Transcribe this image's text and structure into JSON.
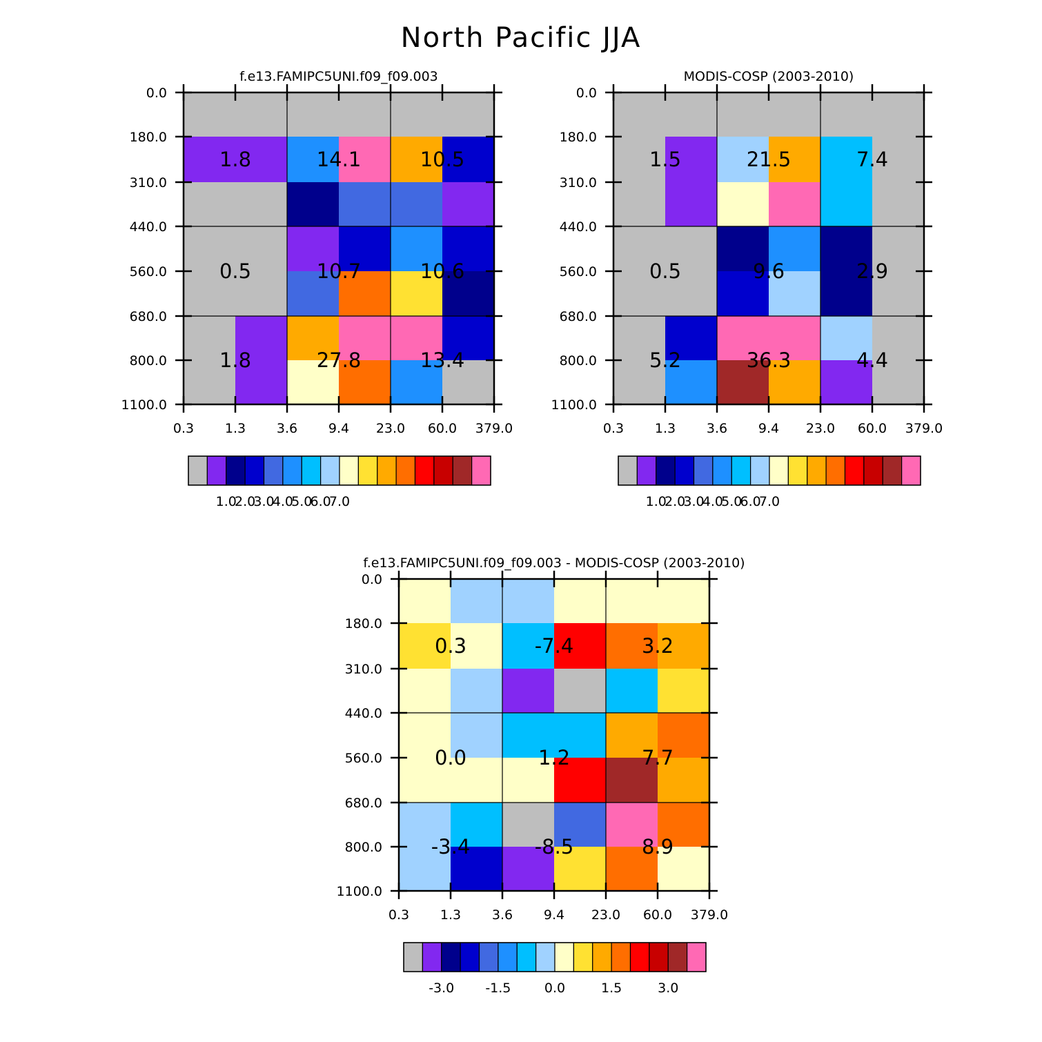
{
  "title": "North Pacific JJA",
  "palette": [
    "#bebebe",
    "#8228f0",
    "#00008c",
    "#0000cd",
    "#4169e1",
    "#1e90ff",
    "#00bfff",
    "#a0d2ff",
    "#ffffc8",
    "#ffe132",
    "#ffaa00",
    "#ff6e00",
    "#ff0000",
    "#c80000",
    "#a02828",
    "#ff69b4"
  ],
  "chart_data": [
    {
      "type": "heatmap",
      "id": "model",
      "title": "f.e13.FAMIPC5UNI.f09_f09.003",
      "x_ticks": [
        "0.3",
        "1.3",
        "3.6",
        "9.4",
        "23.0",
        "60.0",
        "379.0"
      ],
      "y_ticks": [
        "0.0",
        "180.0",
        "310.0",
        "440.0",
        "560.0",
        "680.0",
        "800.0",
        "1100.0"
      ],
      "cells": [
        [
          0,
          0,
          0,
          0,
          0,
          0
        ],
        [
          1,
          1,
          5,
          15,
          10,
          3
        ],
        [
          0,
          0,
          2,
          4,
          4,
          1
        ],
        [
          0,
          0,
          1,
          3,
          5,
          3
        ],
        [
          0,
          0,
          4,
          11,
          9,
          2
        ],
        [
          0,
          1,
          10,
          15,
          15,
          3
        ],
        [
          0,
          1,
          8,
          11,
          5,
          0
        ]
      ],
      "box_labels": [
        [
          "1.8",
          "14.1",
          "10.5"
        ],
        [
          "0.5",
          "10.7",
          "10.6"
        ],
        [
          "1.8",
          "27.8",
          "13.4"
        ]
      ],
      "colorbar": {
        "labels": [
          "1.0",
          "2.0",
          "3.0",
          "4.0",
          "5.0",
          "6.0",
          "7.0"
        ]
      }
    },
    {
      "type": "heatmap",
      "id": "obs",
      "title": "MODIS-COSP (2003-2010)",
      "x_ticks": [
        "0.3",
        "1.3",
        "3.6",
        "9.4",
        "23.0",
        "60.0",
        "379.0"
      ],
      "y_ticks": [
        "0.0",
        "180.0",
        "310.0",
        "440.0",
        "560.0",
        "680.0",
        "800.0",
        "1100.0"
      ],
      "cells": [
        [
          0,
          0,
          0,
          0,
          0,
          0
        ],
        [
          0,
          1,
          7,
          10,
          6,
          0
        ],
        [
          0,
          1,
          8,
          15,
          6,
          0
        ],
        [
          0,
          0,
          2,
          5,
          2,
          0
        ],
        [
          0,
          0,
          3,
          7,
          2,
          0
        ],
        [
          0,
          3,
          15,
          15,
          7,
          0
        ],
        [
          0,
          5,
          14,
          10,
          1,
          0
        ]
      ],
      "box_labels": [
        [
          "1.5",
          "21.5",
          "7.4"
        ],
        [
          "0.5",
          "9.6",
          "2.9"
        ],
        [
          "5.2",
          "36.3",
          "4.4"
        ]
      ],
      "colorbar": {
        "labels": [
          "1.0",
          "2.0",
          "3.0",
          "4.0",
          "5.0",
          "6.0",
          "7.0"
        ]
      }
    },
    {
      "type": "heatmap",
      "id": "diff",
      "title": "f.e13.FAMIPC5UNI.f09_f09.003 - MODIS-COSP (2003-2010)",
      "x_ticks": [
        "0.3",
        "1.3",
        "3.6",
        "9.4",
        "23.0",
        "60.0",
        "379.0"
      ],
      "y_ticks": [
        "0.0",
        "180.0",
        "310.0",
        "440.0",
        "560.0",
        "680.0",
        "800.0",
        "1100.0"
      ],
      "cells": [
        [
          8,
          7,
          7,
          8,
          8,
          8
        ],
        [
          9,
          8,
          6,
          12,
          11,
          10
        ],
        [
          8,
          7,
          1,
          0,
          6,
          9
        ],
        [
          8,
          7,
          6,
          6,
          10,
          11
        ],
        [
          8,
          8,
          8,
          12,
          14,
          10
        ],
        [
          7,
          6,
          0,
          4,
          15,
          11
        ],
        [
          7,
          3,
          1,
          9,
          11,
          8
        ]
      ],
      "box_labels": [
        [
          "0.3",
          "-7.4",
          "3.2"
        ],
        [
          "0.0",
          "1.2",
          "7.7"
        ],
        [
          "-3.4",
          "-8.5",
          "8.9"
        ]
      ],
      "colorbar": {
        "labels": [
          "-3.0",
          "-1.5",
          "0.0",
          "1.5",
          "3.0"
        ]
      }
    }
  ]
}
